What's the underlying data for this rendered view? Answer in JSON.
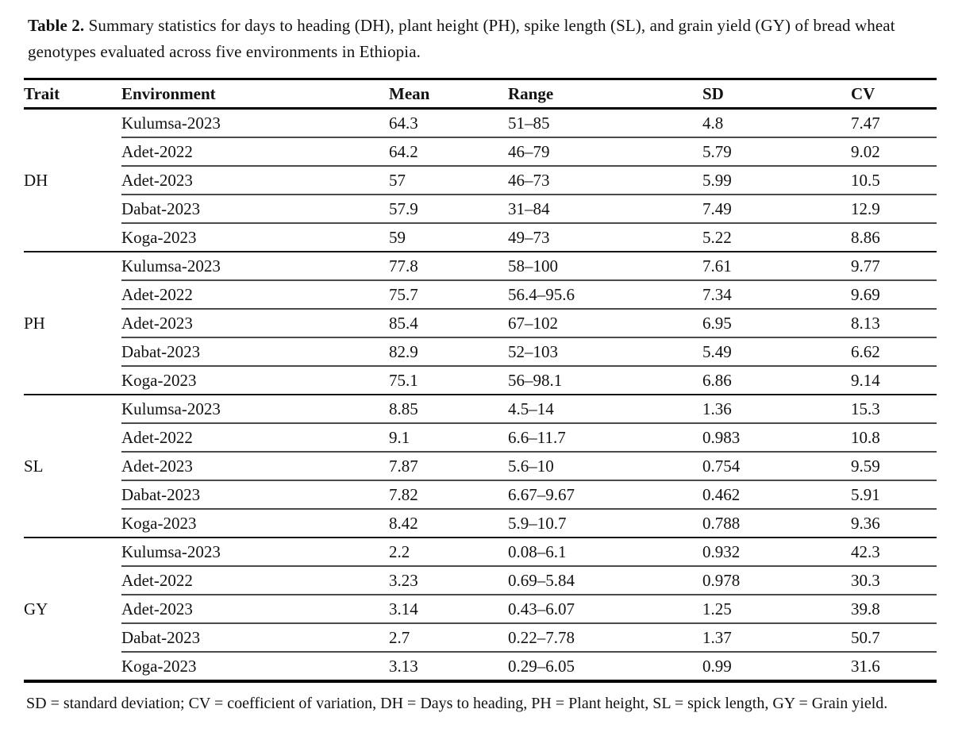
{
  "document": {
    "caption_label": "Table 2.",
    "caption_text": " Summary statistics for days to heading (DH), plant height (PH), spike length (SL), and grain yield (GY) of bread wheat genotypes evaluated across five environments in Ethiopia.",
    "footnote": "SD = standard deviation; CV = coefficient of variation, DH = Days to heading, PH = Plant height, SL = spick length, GY = Grain yield."
  },
  "table": {
    "columns": [
      "Trait",
      "Environment",
      "Mean",
      "Range",
      "SD",
      "CV"
    ],
    "groups": [
      {
        "trait": "DH",
        "rows": [
          {
            "environment": "Kulumsa-2023",
            "mean": "64.3",
            "range": "51–85",
            "sd": "4.8",
            "cv": "7.47"
          },
          {
            "environment": "Adet-2022",
            "mean": "64.2",
            "range": "46–79",
            "sd": "5.79",
            "cv": "9.02"
          },
          {
            "environment": "Adet-2023",
            "mean": "57",
            "range": "46–73",
            "sd": "5.99",
            "cv": "10.5"
          },
          {
            "environment": "Dabat-2023",
            "mean": "57.9",
            "range": "31–84",
            "sd": "7.49",
            "cv": "12.9"
          },
          {
            "environment": "Koga-2023",
            "mean": "59",
            "range": "49–73",
            "sd": "5.22",
            "cv": "8.86"
          }
        ]
      },
      {
        "trait": "PH",
        "rows": [
          {
            "environment": "Kulumsa-2023",
            "mean": "77.8",
            "range": "58–100",
            "sd": "7.61",
            "cv": "9.77"
          },
          {
            "environment": "Adet-2022",
            "mean": "75.7",
            "range": "56.4–95.6",
            "sd": "7.34",
            "cv": "9.69"
          },
          {
            "environment": "Adet-2023",
            "mean": "85.4",
            "range": "67–102",
            "sd": "6.95",
            "cv": "8.13"
          },
          {
            "environment": "Dabat-2023",
            "mean": "82.9",
            "range": "52–103",
            "sd": "5.49",
            "cv": "6.62"
          },
          {
            "environment": "Koga-2023",
            "mean": "75.1",
            "range": "56–98.1",
            "sd": "6.86",
            "cv": "9.14"
          }
        ]
      },
      {
        "trait": "SL",
        "rows": [
          {
            "environment": "Kulumsa-2023",
            "mean": "8.85",
            "range": "4.5–14",
            "sd": "1.36",
            "cv": "15.3"
          },
          {
            "environment": "Adet-2022",
            "mean": "9.1",
            "range": "6.6–11.7",
            "sd": "0.983",
            "cv": "10.8"
          },
          {
            "environment": "Adet-2023",
            "mean": "7.87",
            "range": "5.6–10",
            "sd": "0.754",
            "cv": "9.59"
          },
          {
            "environment": "Dabat-2023",
            "mean": "7.82",
            "range": "6.67–9.67",
            "sd": "0.462",
            "cv": "5.91"
          },
          {
            "environment": "Koga-2023",
            "mean": "8.42",
            "range": "5.9–10.7",
            "sd": "0.788",
            "cv": "9.36"
          }
        ]
      },
      {
        "trait": "GY",
        "rows": [
          {
            "environment": "Kulumsa-2023",
            "mean": "2.2",
            "range": "0.08–6.1",
            "sd": "0.932",
            "cv": "42.3"
          },
          {
            "environment": "Adet-2022",
            "mean": "3.23",
            "range": "0.69–5.84",
            "sd": "0.978",
            "cv": "30.3"
          },
          {
            "environment": "Adet-2023",
            "mean": "3.14",
            "range": "0.43–6.07",
            "sd": "1.25",
            "cv": "39.8"
          },
          {
            "environment": "Dabat-2023",
            "mean": "2.7",
            "range": "0.22–7.78",
            "sd": "1.37",
            "cv": "50.7"
          },
          {
            "environment": "Koga-2023",
            "mean": "3.13",
            "range": "0.29–6.05",
            "sd": "0.99",
            "cv": "31.6"
          }
        ]
      }
    ]
  }
}
